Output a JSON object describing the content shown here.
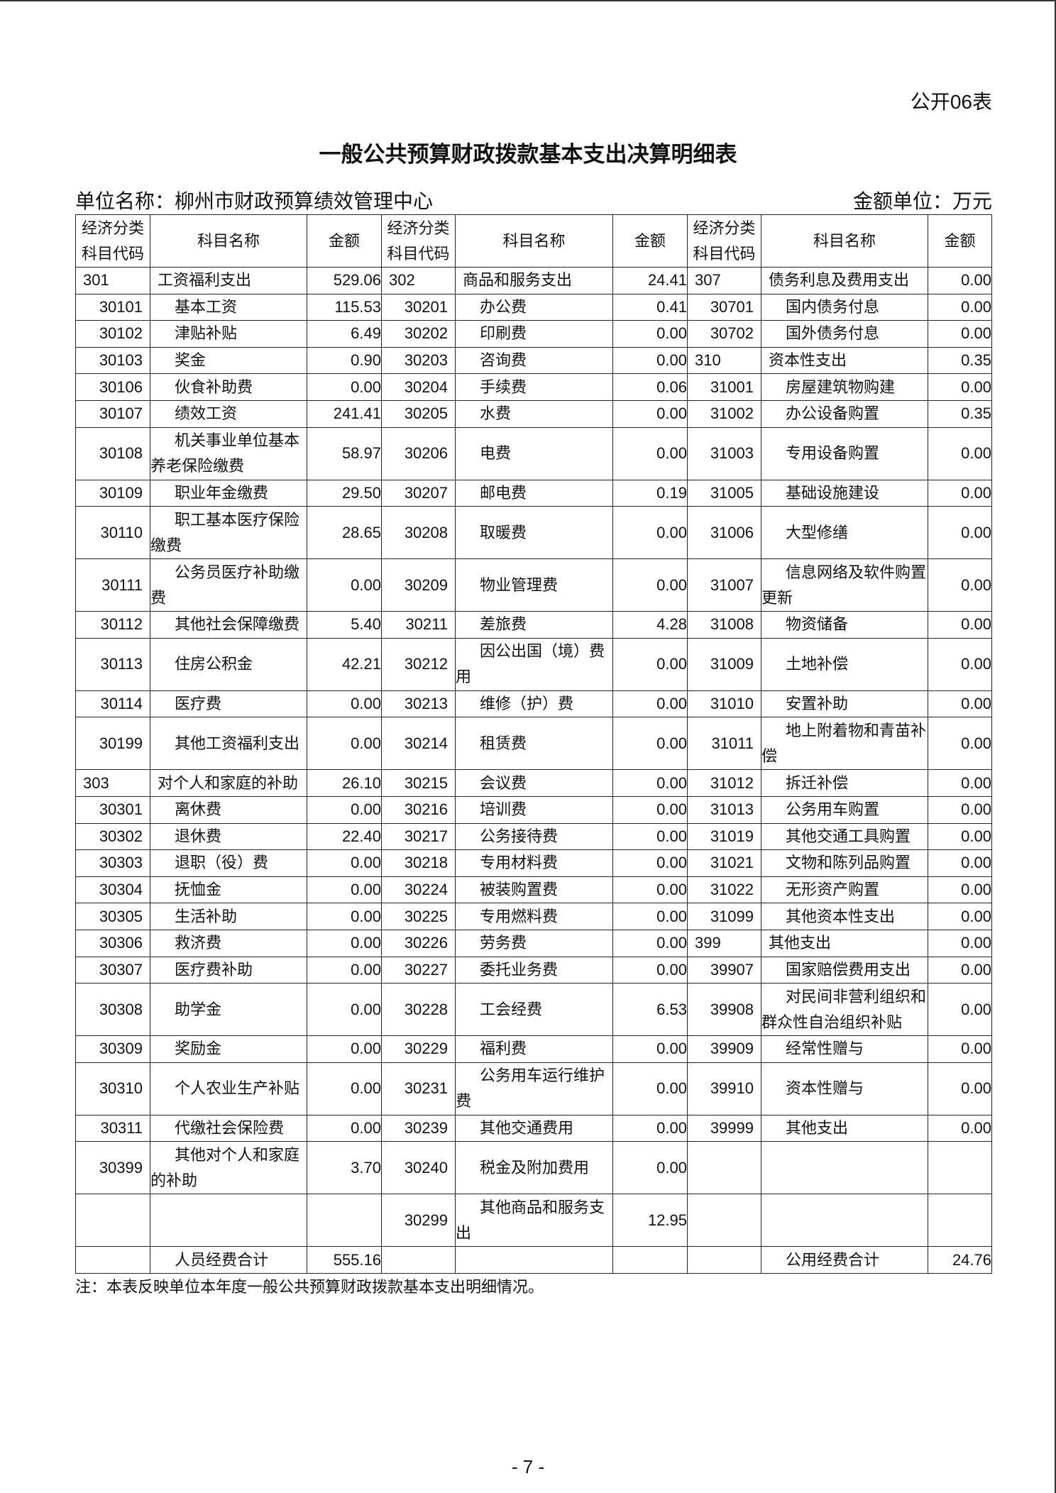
{
  "table_no": "公开06表",
  "title": "一般公共预算财政拨款基本支出决算明细表",
  "unit_name": "单位名称：柳州市财政预算绩效管理中心",
  "unit_money": "金额单位：万元",
  "headers": [
    "经济分类科目代码",
    "科目名称",
    "金额",
    "经济分类科目代码",
    "科目名称",
    "金额",
    "经济分类科目代码",
    "科目名称",
    "金额"
  ],
  "rows": [
    {
      "tall": false,
      "cells": [
        [
          "301",
          "工资福利支出",
          "529.06",
          1
        ],
        [
          "302",
          "商品和服务支出",
          "24.41",
          1
        ],
        [
          "307",
          "债务利息及费用支出",
          "0.00",
          1
        ]
      ]
    },
    {
      "tall": false,
      "cells": [
        [
          "30101",
          "基本工资",
          "115.53",
          0
        ],
        [
          "30201",
          "办公费",
          "0.41",
          0
        ],
        [
          "30701",
          "国内债务付息",
          "0.00",
          0
        ]
      ]
    },
    {
      "tall": false,
      "cells": [
        [
          "30102",
          "津贴补贴",
          "6.49",
          0
        ],
        [
          "30202",
          "印刷费",
          "0.00",
          0
        ],
        [
          "30702",
          "国外债务付息",
          "0.00",
          0
        ]
      ]
    },
    {
      "tall": false,
      "cells": [
        [
          "30103",
          "奖金",
          "0.90",
          0
        ],
        [
          "30203",
          "咨询费",
          "0.00",
          0
        ],
        [
          "310",
          "资本性支出",
          "0.35",
          1
        ]
      ]
    },
    {
      "tall": false,
      "cells": [
        [
          "30106",
          "伙食补助费",
          "0.00",
          0
        ],
        [
          "30204",
          "手续费",
          "0.06",
          0
        ],
        [
          "31001",
          "房屋建筑物购建",
          "0.00",
          0
        ]
      ]
    },
    {
      "tall": false,
      "cells": [
        [
          "30107",
          "绩效工资",
          "241.41",
          0
        ],
        [
          "30205",
          "水费",
          "0.00",
          0
        ],
        [
          "31002",
          "办公设备购置",
          "0.35",
          0
        ]
      ]
    },
    {
      "tall": true,
      "cells": [
        [
          "30108",
          "机关事业单位基本养老保险缴费",
          "58.97",
          0
        ],
        [
          "30206",
          "电费",
          "0.00",
          0
        ],
        [
          "31003",
          "专用设备购置",
          "0.00",
          0
        ]
      ]
    },
    {
      "tall": false,
      "cells": [
        [
          "30109",
          "职业年金缴费",
          "29.50",
          0
        ],
        [
          "30207",
          "邮电费",
          "0.19",
          0
        ],
        [
          "31005",
          "基础设施建设",
          "0.00",
          0
        ]
      ]
    },
    {
      "tall": true,
      "cells": [
        [
          "30110",
          "职工基本医疗保险缴费",
          "28.65",
          0
        ],
        [
          "30208",
          "取暖费",
          "0.00",
          0
        ],
        [
          "31006",
          "大型修缮",
          "0.00",
          0
        ]
      ]
    },
    {
      "tall": true,
      "cells": [
        [
          "30111",
          "公务员医疗补助缴费",
          "0.00",
          0
        ],
        [
          "30209",
          "物业管理费",
          "0.00",
          0
        ],
        [
          "31007",
          "信息网络及软件购置更新",
          "0.00",
          0
        ]
      ]
    },
    {
      "tall": false,
      "cells": [
        [
          "30112",
          "其他社会保障缴费",
          "5.40",
          0
        ],
        [
          "30211",
          "差旅费",
          "4.28",
          0
        ],
        [
          "31008",
          "物资储备",
          "0.00",
          0
        ]
      ]
    },
    {
      "tall": true,
      "cells": [
        [
          "30113",
          "住房公积金",
          "42.21",
          0
        ],
        [
          "30212",
          "因公出国（境）费用",
          "0.00",
          0
        ],
        [
          "31009",
          "土地补偿",
          "0.00",
          0
        ]
      ]
    },
    {
      "tall": false,
      "cells": [
        [
          "30114",
          "医疗费",
          "0.00",
          0
        ],
        [
          "30213",
          "维修（护）费",
          "0.00",
          0
        ],
        [
          "31010",
          "安置补助",
          "0.00",
          0
        ]
      ]
    },
    {
      "tall": true,
      "cells": [
        [
          "30199",
          "其他工资福利支出",
          "0.00",
          0
        ],
        [
          "30214",
          "租赁费",
          "0.00",
          0
        ],
        [
          "31011",
          "地上附着物和青苗补偿",
          "0.00",
          0
        ]
      ]
    },
    {
      "tall": false,
      "cells": [
        [
          "303",
          "对个人和家庭的补助",
          "26.10",
          1
        ],
        [
          "30215",
          "会议费",
          "0.00",
          0
        ],
        [
          "31012",
          "拆迁补偿",
          "0.00",
          0
        ]
      ]
    },
    {
      "tall": false,
      "cells": [
        [
          "30301",
          "离休费",
          "0.00",
          0
        ],
        [
          "30216",
          "培训费",
          "0.00",
          0
        ],
        [
          "31013",
          "公务用车购置",
          "0.00",
          0
        ]
      ]
    },
    {
      "tall": false,
      "cells": [
        [
          "30302",
          "退休费",
          "22.40",
          0
        ],
        [
          "30217",
          "公务接待费",
          "0.00",
          0
        ],
        [
          "31019",
          "其他交通工具购置",
          "0.00",
          0
        ]
      ]
    },
    {
      "tall": false,
      "cells": [
        [
          "30303",
          "退职（役）费",
          "0.00",
          0
        ],
        [
          "30218",
          "专用材料费",
          "0.00",
          0
        ],
        [
          "31021",
          "文物和陈列品购置",
          "0.00",
          0
        ]
      ]
    },
    {
      "tall": false,
      "cells": [
        [
          "30304",
          "抚恤金",
          "0.00",
          0
        ],
        [
          "30224",
          "被装购置费",
          "0.00",
          0
        ],
        [
          "31022",
          "无形资产购置",
          "0.00",
          0
        ]
      ]
    },
    {
      "tall": false,
      "cells": [
        [
          "30305",
          "生活补助",
          "0.00",
          0
        ],
        [
          "30225",
          "专用燃料费",
          "0.00",
          0
        ],
        [
          "31099",
          "其他资本性支出",
          "0.00",
          0
        ]
      ]
    },
    {
      "tall": false,
      "cells": [
        [
          "30306",
          "救济费",
          "0.00",
          0
        ],
        [
          "30226",
          "劳务费",
          "0.00",
          0
        ],
        [
          "399",
          "其他支出",
          "0.00",
          1
        ]
      ]
    },
    {
      "tall": false,
      "cells": [
        [
          "30307",
          "医疗费补助",
          "0.00",
          0
        ],
        [
          "30227",
          "委托业务费",
          "0.00",
          0
        ],
        [
          "39907",
          "国家赔偿费用支出",
          "0.00",
          0
        ]
      ]
    },
    {
      "tall": true,
      "cells": [
        [
          "30308",
          "助学金",
          "0.00",
          0
        ],
        [
          "30228",
          "工会经费",
          "6.53",
          0
        ],
        [
          "39908",
          "对民间非营利组织和群众性自治组织补贴",
          "0.00",
          0
        ]
      ]
    },
    {
      "tall": false,
      "cells": [
        [
          "30309",
          "奖励金",
          "0.00",
          0
        ],
        [
          "30229",
          "福利费",
          "0.00",
          0
        ],
        [
          "39909",
          "经常性赠与",
          "0.00",
          0
        ]
      ]
    },
    {
      "tall": true,
      "cells": [
        [
          "30310",
          "个人农业生产补贴",
          "0.00",
          0
        ],
        [
          "30231",
          "公务用车运行维护费",
          "0.00",
          0
        ],
        [
          "39910",
          "资本性赠与",
          "0.00",
          0
        ]
      ]
    },
    {
      "tall": false,
      "cells": [
        [
          "30311",
          "代缴社会保险费",
          "0.00",
          0
        ],
        [
          "30239",
          "其他交通费用",
          "0.00",
          0
        ],
        [
          "39999",
          "其他支出",
          "0.00",
          0
        ]
      ]
    },
    {
      "tall": true,
      "cells": [
        [
          "30399",
          "其他对个人和家庭的补助",
          "3.70",
          0
        ],
        [
          "30240",
          "税金及附加费用",
          "0.00",
          0
        ],
        [
          "",
          "",
          "",
          0
        ]
      ]
    },
    {
      "tall": true,
      "cells": [
        [
          "",
          "",
          "",
          0
        ],
        [
          "30299",
          "其他商品和服务支出",
          "12.95",
          0
        ],
        [
          "",
          "",
          "",
          0
        ]
      ]
    },
    {
      "tall": false,
      "cells": [
        [
          "",
          "人员经费合计",
          "555.16",
          0
        ],
        [
          "",
          "",
          "",
          0
        ],
        [
          "",
          "公用经费合计",
          "24.76",
          0
        ]
      ]
    }
  ],
  "note": "注：本表反映单位本年度一般公共预算财政拨款基本支出明细情况。",
  "page_num": "- 7 -"
}
